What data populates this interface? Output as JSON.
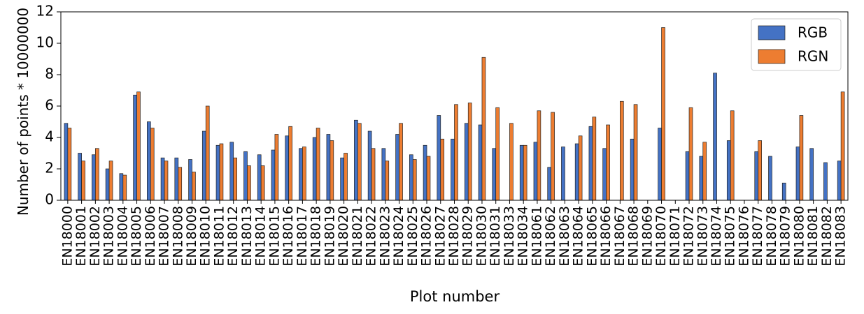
{
  "chart_data": {
    "type": "bar",
    "y_label": "Number of points * 10000000",
    "x_label": "Plot number",
    "categories": [
      "EN18000",
      "EN18001",
      "EN18002",
      "EN18003",
      "EN18004",
      "EN18005",
      "EN18006",
      "EN18007",
      "EN18008",
      "EN18009",
      "EN18010",
      "EN18011",
      "EN18012",
      "EN18013",
      "EN18014",
      "EN18015",
      "EN18016",
      "EN18017",
      "EN18018",
      "EN18019",
      "EN18020",
      "EN18021",
      "EN18022",
      "EN18023",
      "EN18024",
      "EN18025",
      "EN18026",
      "EN18027",
      "EN18028",
      "EN18029",
      "EN18030",
      "EN18031",
      "EN18033",
      "EN18034",
      "EN18061",
      "EN18062",
      "EN18063",
      "EN18064",
      "EN18065",
      "EN18066",
      "EN18067",
      "EN18068",
      "EN18069",
      "EN18070",
      "EN18071",
      "EN18072",
      "EN18073",
      "EN18074",
      "EN18075",
      "EN18076",
      "EN18077",
      "EN18078",
      "EN18079",
      "EN18080",
      "EN18081",
      "EN18082",
      "EN18083"
    ],
    "series": [
      {
        "name": "RGB",
        "color": "#4472c4",
        "values": [
          4.9,
          3.0,
          2.9,
          2.0,
          1.7,
          6.7,
          5.0,
          2.7,
          2.7,
          2.6,
          4.4,
          3.5,
          3.7,
          3.1,
          2.9,
          3.2,
          4.1,
          3.3,
          4.0,
          4.2,
          2.7,
          5.1,
          4.4,
          3.3,
          4.2,
          2.9,
          3.5,
          5.4,
          3.9,
          4.9,
          4.8,
          3.3,
          null,
          3.5,
          3.7,
          2.1,
          3.4,
          3.6,
          4.7,
          3.3,
          null,
          3.9,
          null,
          4.6,
          null,
          3.1,
          2.8,
          8.1,
          3.8,
          null,
          3.1,
          2.8,
          1.1,
          3.4,
          3.3,
          2.4,
          2.5
        ]
      },
      {
        "name": "RGN",
        "color": "#ed7d31",
        "values": [
          4.6,
          2.5,
          3.3,
          2.5,
          1.6,
          6.9,
          4.6,
          2.5,
          2.1,
          1.8,
          6.0,
          3.6,
          2.7,
          2.2,
          2.2,
          4.2,
          4.7,
          3.4,
          4.6,
          3.8,
          3.0,
          4.9,
          3.3,
          2.5,
          4.9,
          2.6,
          2.8,
          3.9,
          6.1,
          6.2,
          9.1,
          5.9,
          4.9,
          3.5,
          5.7,
          5.6,
          null,
          4.1,
          5.3,
          4.8,
          6.3,
          6.1,
          null,
          11.0,
          null,
          5.9,
          3.7,
          null,
          5.7,
          null,
          3.8,
          null,
          null,
          5.4,
          null,
          null,
          6.9
        ]
      }
    ],
    "ylim": [
      0,
      12
    ],
    "yticks": [
      0,
      2,
      4,
      6,
      8,
      10,
      12
    ],
    "legend": "upper right"
  }
}
